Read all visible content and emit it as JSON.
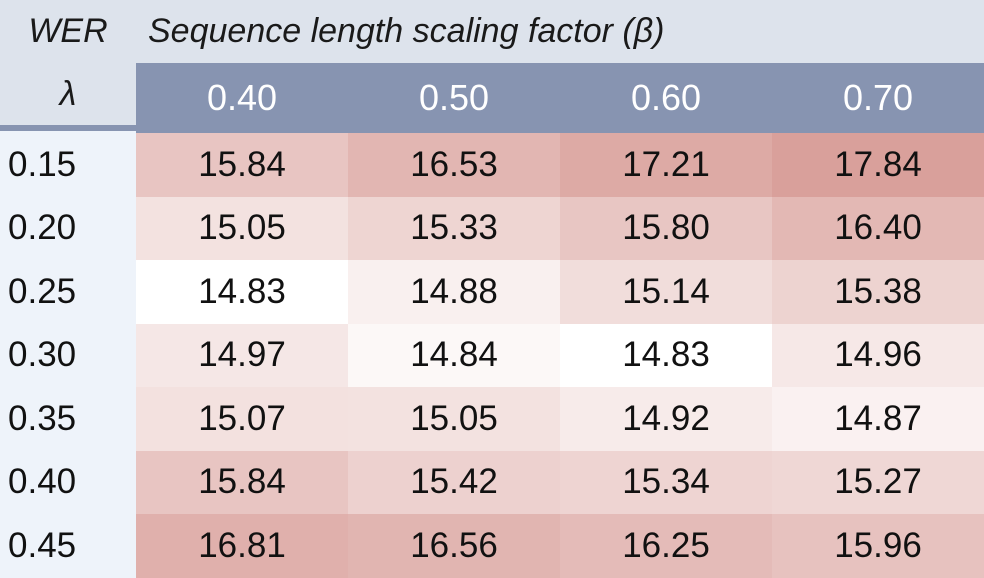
{
  "chart_data": {
    "type": "heatmap",
    "corner_label": "WER",
    "col_axis_label": "Sequence length scaling factor (β)",
    "row_axis_label": "λ",
    "columns": [
      "0.40",
      "0.50",
      "0.60",
      "0.70"
    ],
    "rows": [
      "0.15",
      "0.20",
      "0.25",
      "0.30",
      "0.35",
      "0.40",
      "0.45"
    ],
    "values": [
      [
        15.84,
        16.53,
        17.21,
        17.84
      ],
      [
        15.05,
        15.33,
        15.8,
        16.4
      ],
      [
        14.83,
        14.88,
        15.14,
        15.38
      ],
      [
        14.97,
        14.84,
        14.83,
        14.96
      ],
      [
        15.07,
        15.05,
        14.92,
        14.87
      ],
      [
        15.84,
        15.42,
        15.34,
        15.27
      ],
      [
        16.81,
        16.56,
        16.25,
        15.96
      ]
    ],
    "color_scale": {
      "low_color": "#ffffff",
      "high_color": "#d9a09b"
    },
    "colors": {
      "header_band": "#dde3ec",
      "column_header": "#8794b1",
      "row_label_bg": "#eef3fa"
    }
  }
}
